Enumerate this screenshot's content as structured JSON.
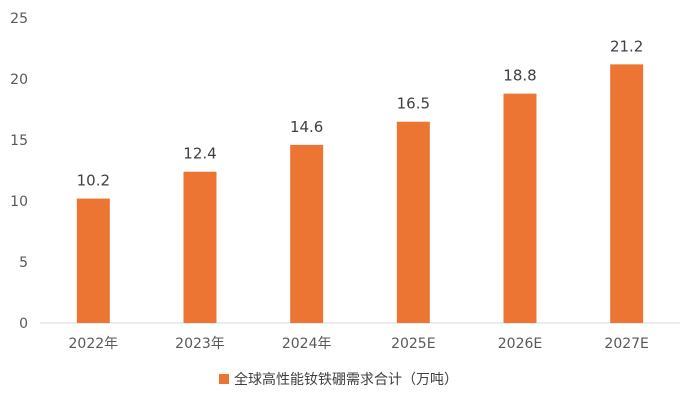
{
  "chart_data": {
    "type": "bar",
    "categories": [
      "2022年",
      "2023年",
      "2024年",
      "2025E",
      "2026E",
      "2027E"
    ],
    "series": [
      {
        "name": "全球高性能钕铁硼需求合计（万吨）",
        "values": [
          10.2,
          12.4,
          14.6,
          16.5,
          18.8,
          21.2
        ],
        "color": "#ED7533"
      }
    ],
    "data_labels": [
      "10.2",
      "12.4",
      "14.6",
      "16.5",
      "18.8",
      "21.2"
    ],
    "yticks": [
      "0",
      "5",
      "10",
      "15",
      "20",
      "25"
    ],
    "ylim": [
      0,
      25
    ],
    "grid": false,
    "legend_position": "bottom",
    "title": "",
    "xlabel": "",
    "ylabel": ""
  }
}
